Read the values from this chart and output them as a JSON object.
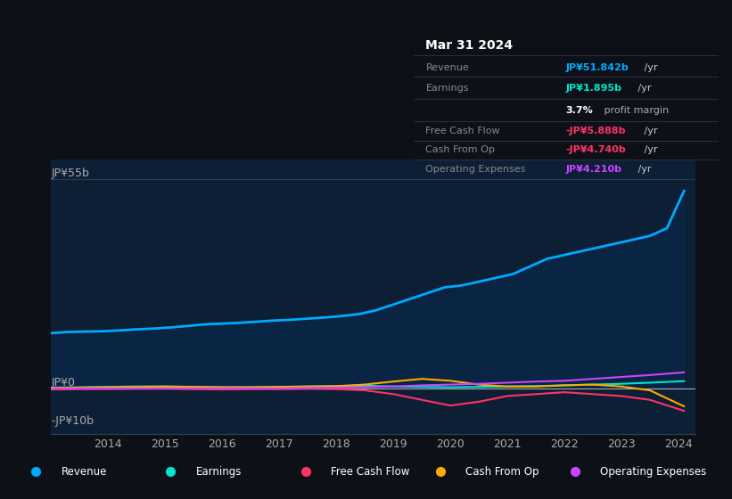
{
  "bg_color": "#0d1117",
  "plot_bg_color": "#0d1f35",
  "title": "Mar 31 2024",
  "ylim": [
    -12,
    60
  ],
  "xlabel_years": [
    2014,
    2015,
    2016,
    2017,
    2018,
    2019,
    2020,
    2021,
    2022,
    2023,
    2024
  ],
  "series": {
    "Revenue": {
      "color": "#00aaff",
      "linewidth": 2.0,
      "x": [
        2013.0,
        2013.3,
        2013.6,
        2013.9,
        2014.2,
        2014.5,
        2014.8,
        2015.1,
        2015.4,
        2015.7,
        2016.0,
        2016.3,
        2016.6,
        2016.9,
        2017.2,
        2017.5,
        2017.8,
        2018.1,
        2018.4,
        2018.7,
        2019.0,
        2019.3,
        2019.6,
        2019.9,
        2020.2,
        2020.5,
        2020.8,
        2021.1,
        2021.4,
        2021.7,
        2022.0,
        2022.3,
        2022.6,
        2022.9,
        2023.2,
        2023.5,
        2023.8,
        2024.1
      ],
      "y": [
        14.5,
        14.8,
        14.9,
        15.0,
        15.2,
        15.5,
        15.7,
        16.0,
        16.4,
        16.8,
        17.0,
        17.2,
        17.5,
        17.8,
        18.0,
        18.3,
        18.6,
        19.0,
        19.5,
        20.5,
        22.0,
        23.5,
        25.0,
        26.5,
        27.0,
        28.0,
        29.0,
        30.0,
        32.0,
        34.0,
        35.0,
        36.0,
        37.0,
        38.0,
        39.0,
        40.0,
        42.0,
        51.8
      ]
    },
    "Earnings": {
      "color": "#00e5cc",
      "linewidth": 1.5,
      "x": [
        2013.0,
        2013.5,
        2014.0,
        2014.5,
        2015.0,
        2015.5,
        2016.0,
        2016.5,
        2017.0,
        2017.5,
        2018.0,
        2018.5,
        2019.0,
        2019.5,
        2020.0,
        2020.5,
        2021.0,
        2021.5,
        2022.0,
        2022.5,
        2023.0,
        2023.5,
        2024.1
      ],
      "y": [
        0.2,
        0.3,
        0.4,
        0.5,
        0.5,
        0.4,
        0.3,
        0.3,
        0.4,
        0.5,
        0.6,
        0.7,
        0.5,
        0.4,
        0.3,
        0.4,
        0.5,
        0.6,
        0.8,
        1.0,
        1.2,
        1.5,
        1.9
      ]
    },
    "Free Cash Flow": {
      "color": "#ff3366",
      "linewidth": 1.5,
      "x": [
        2013.0,
        2013.5,
        2014.0,
        2014.5,
        2015.0,
        2015.5,
        2016.0,
        2016.5,
        2017.0,
        2017.5,
        2018.0,
        2018.5,
        2019.0,
        2019.5,
        2020.0,
        2020.5,
        2021.0,
        2021.5,
        2022.0,
        2022.5,
        2023.0,
        2023.5,
        2024.1
      ],
      "y": [
        -0.3,
        -0.2,
        -0.2,
        -0.1,
        -0.1,
        -0.2,
        -0.3,
        -0.2,
        -0.2,
        -0.1,
        -0.2,
        -0.5,
        -1.5,
        -3.0,
        -4.5,
        -3.5,
        -2.0,
        -1.5,
        -1.0,
        -1.5,
        -2.0,
        -3.0,
        -5.9
      ]
    },
    "Cash From Op": {
      "color": "#ffaa00",
      "linewidth": 1.5,
      "x": [
        2013.0,
        2013.5,
        2014.0,
        2014.5,
        2015.0,
        2015.5,
        2016.0,
        2016.5,
        2017.0,
        2017.5,
        2018.0,
        2018.5,
        2019.0,
        2019.5,
        2020.0,
        2020.5,
        2021.0,
        2021.5,
        2022.0,
        2022.5,
        2023.0,
        2023.5,
        2024.1
      ],
      "y": [
        0.1,
        0.2,
        0.3,
        0.4,
        0.5,
        0.4,
        0.3,
        0.3,
        0.4,
        0.5,
        0.6,
        1.0,
        1.8,
        2.5,
        2.0,
        1.0,
        0.5,
        0.5,
        0.8,
        1.0,
        0.5,
        -0.5,
        -4.7
      ]
    },
    "Operating Expenses": {
      "color": "#cc44ff",
      "linewidth": 1.5,
      "x": [
        2013.0,
        2013.5,
        2014.0,
        2014.5,
        2015.0,
        2015.5,
        2016.0,
        2016.5,
        2017.0,
        2017.5,
        2018.0,
        2018.5,
        2019.0,
        2019.5,
        2020.0,
        2020.5,
        2021.0,
        2021.5,
        2022.0,
        2022.5,
        2023.0,
        2023.5,
        2024.1
      ],
      "y": [
        0.0,
        0.0,
        0.0,
        0.0,
        0.0,
        0.0,
        0.0,
        0.0,
        0.0,
        0.1,
        0.2,
        0.3,
        0.5,
        0.8,
        1.0,
        1.2,
        1.5,
        1.8,
        2.0,
        2.5,
        3.0,
        3.5,
        4.2
      ]
    }
  },
  "legend_items": [
    {
      "label": "Revenue",
      "color": "#00aaff"
    },
    {
      "label": "Earnings",
      "color": "#00e5cc"
    },
    {
      "label": "Free Cash Flow",
      "color": "#ff3366"
    },
    {
      "label": "Cash From Op",
      "color": "#ffaa00"
    },
    {
      "label": "Operating Expenses",
      "color": "#cc44ff"
    }
  ],
  "table_rows": [
    {
      "label": "Revenue",
      "value": "JP¥51.842b",
      "suffix": " /yr",
      "val_color": "#00aaff",
      "suf_color": "#cccccc"
    },
    {
      "label": "Earnings",
      "value": "JP¥1.895b",
      "suffix": " /yr",
      "val_color": "#00e5cc",
      "suf_color": "#cccccc"
    },
    {
      "label": "",
      "value": "3.7%",
      "suffix": " profit margin",
      "val_color": "#ffffff",
      "suf_color": "#aaaaaa"
    },
    {
      "label": "Free Cash Flow",
      "value": "-JP¥5.888b",
      "suffix": " /yr",
      "val_color": "#ff3366",
      "suf_color": "#cccccc"
    },
    {
      "label": "Cash From Op",
      "value": "-JP¥4.740b",
      "suffix": " /yr",
      "val_color": "#ff3366",
      "suf_color": "#cccccc"
    },
    {
      "label": "Operating Expenses",
      "value": "JP¥4.210b",
      "suffix": " /yr",
      "val_color": "#cc44ff",
      "suf_color": "#cccccc"
    }
  ]
}
